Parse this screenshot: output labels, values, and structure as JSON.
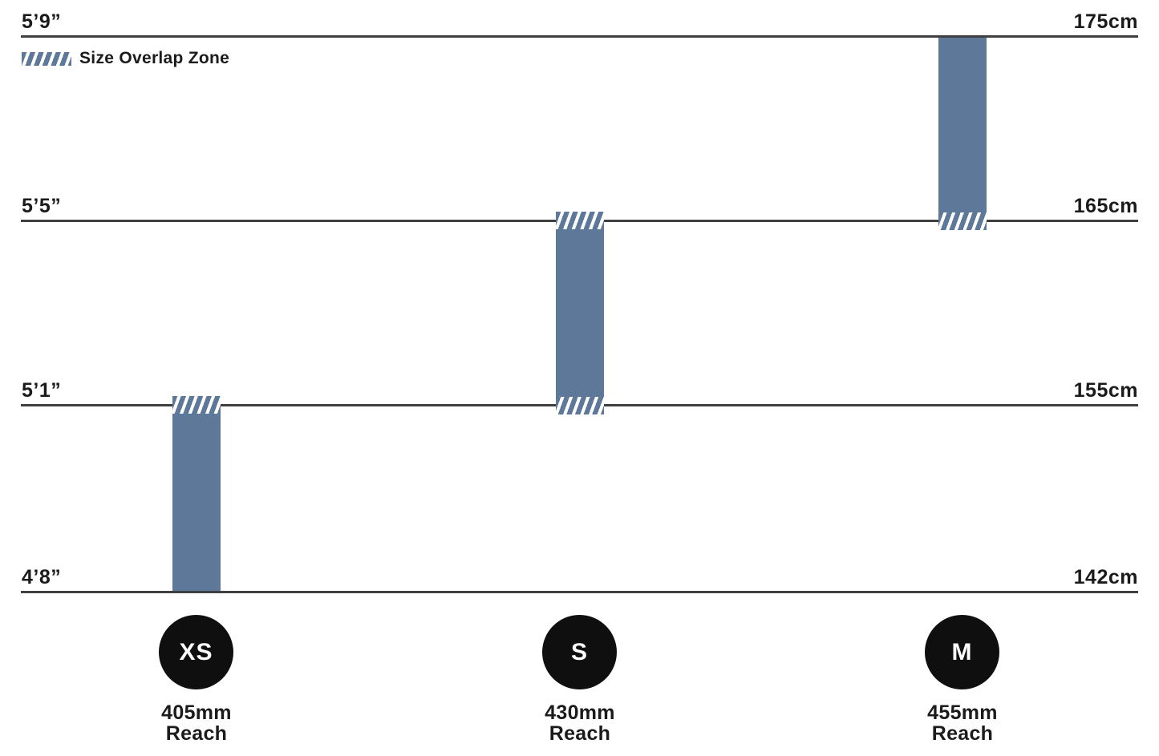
{
  "legend": {
    "label": "Size Overlap Zone"
  },
  "gridlines": [
    {
      "left": "5’9”",
      "right": "175cm"
    },
    {
      "left": "5’5”",
      "right": "165cm"
    },
    {
      "left": "5’1”",
      "right": "155cm"
    },
    {
      "left": "4’8”",
      "right": "142cm"
    }
  ],
  "sizes": [
    {
      "label": "XS",
      "reach_value": "405mm",
      "reach_word": "Reach"
    },
    {
      "label": "S",
      "reach_value": "430mm",
      "reach_word": "Reach"
    },
    {
      "label": "M",
      "reach_value": "455mm",
      "reach_word": "Reach"
    }
  ],
  "colors": {
    "bar": "#5d7899",
    "line": "#404040",
    "text": "#1b1b1b",
    "circle": "#0f0f0f",
    "background": "#ffffff"
  },
  "chart_data": {
    "type": "bar",
    "subtype": "vertical-range-size-chart",
    "title": "",
    "legend_entries": [
      "Size Overlap Zone"
    ],
    "legend_position": "top-left",
    "grid": "horizontal-lines-only",
    "y_axis_left_ticks": [
      "5’9”",
      "5’5”",
      "5’1”",
      "4’8”"
    ],
    "y_axis_right_ticks": [
      "175cm",
      "165cm",
      "155cm",
      "142cm"
    ],
    "y_range_cm": [
      142,
      175
    ],
    "series": [
      {
        "name": "XS",
        "reach": "405mm",
        "rider_height_cm": [
          142,
          155
        ],
        "rider_height_imperial": [
          "4’8”",
          "5’1”"
        ],
        "overlap_zones_cm": [
          155
        ]
      },
      {
        "name": "S",
        "reach": "430mm",
        "rider_height_cm": [
          155,
          165
        ],
        "rider_height_imperial": [
          "5’1”",
          "5’5”"
        ],
        "overlap_zones_cm": [
          155,
          165
        ]
      },
      {
        "name": "M",
        "reach": "455mm",
        "rider_height_cm": [
          165,
          175
        ],
        "rider_height_imperial": [
          "5’5”",
          "5’9”"
        ],
        "overlap_zones_cm": [
          165
        ]
      }
    ]
  }
}
